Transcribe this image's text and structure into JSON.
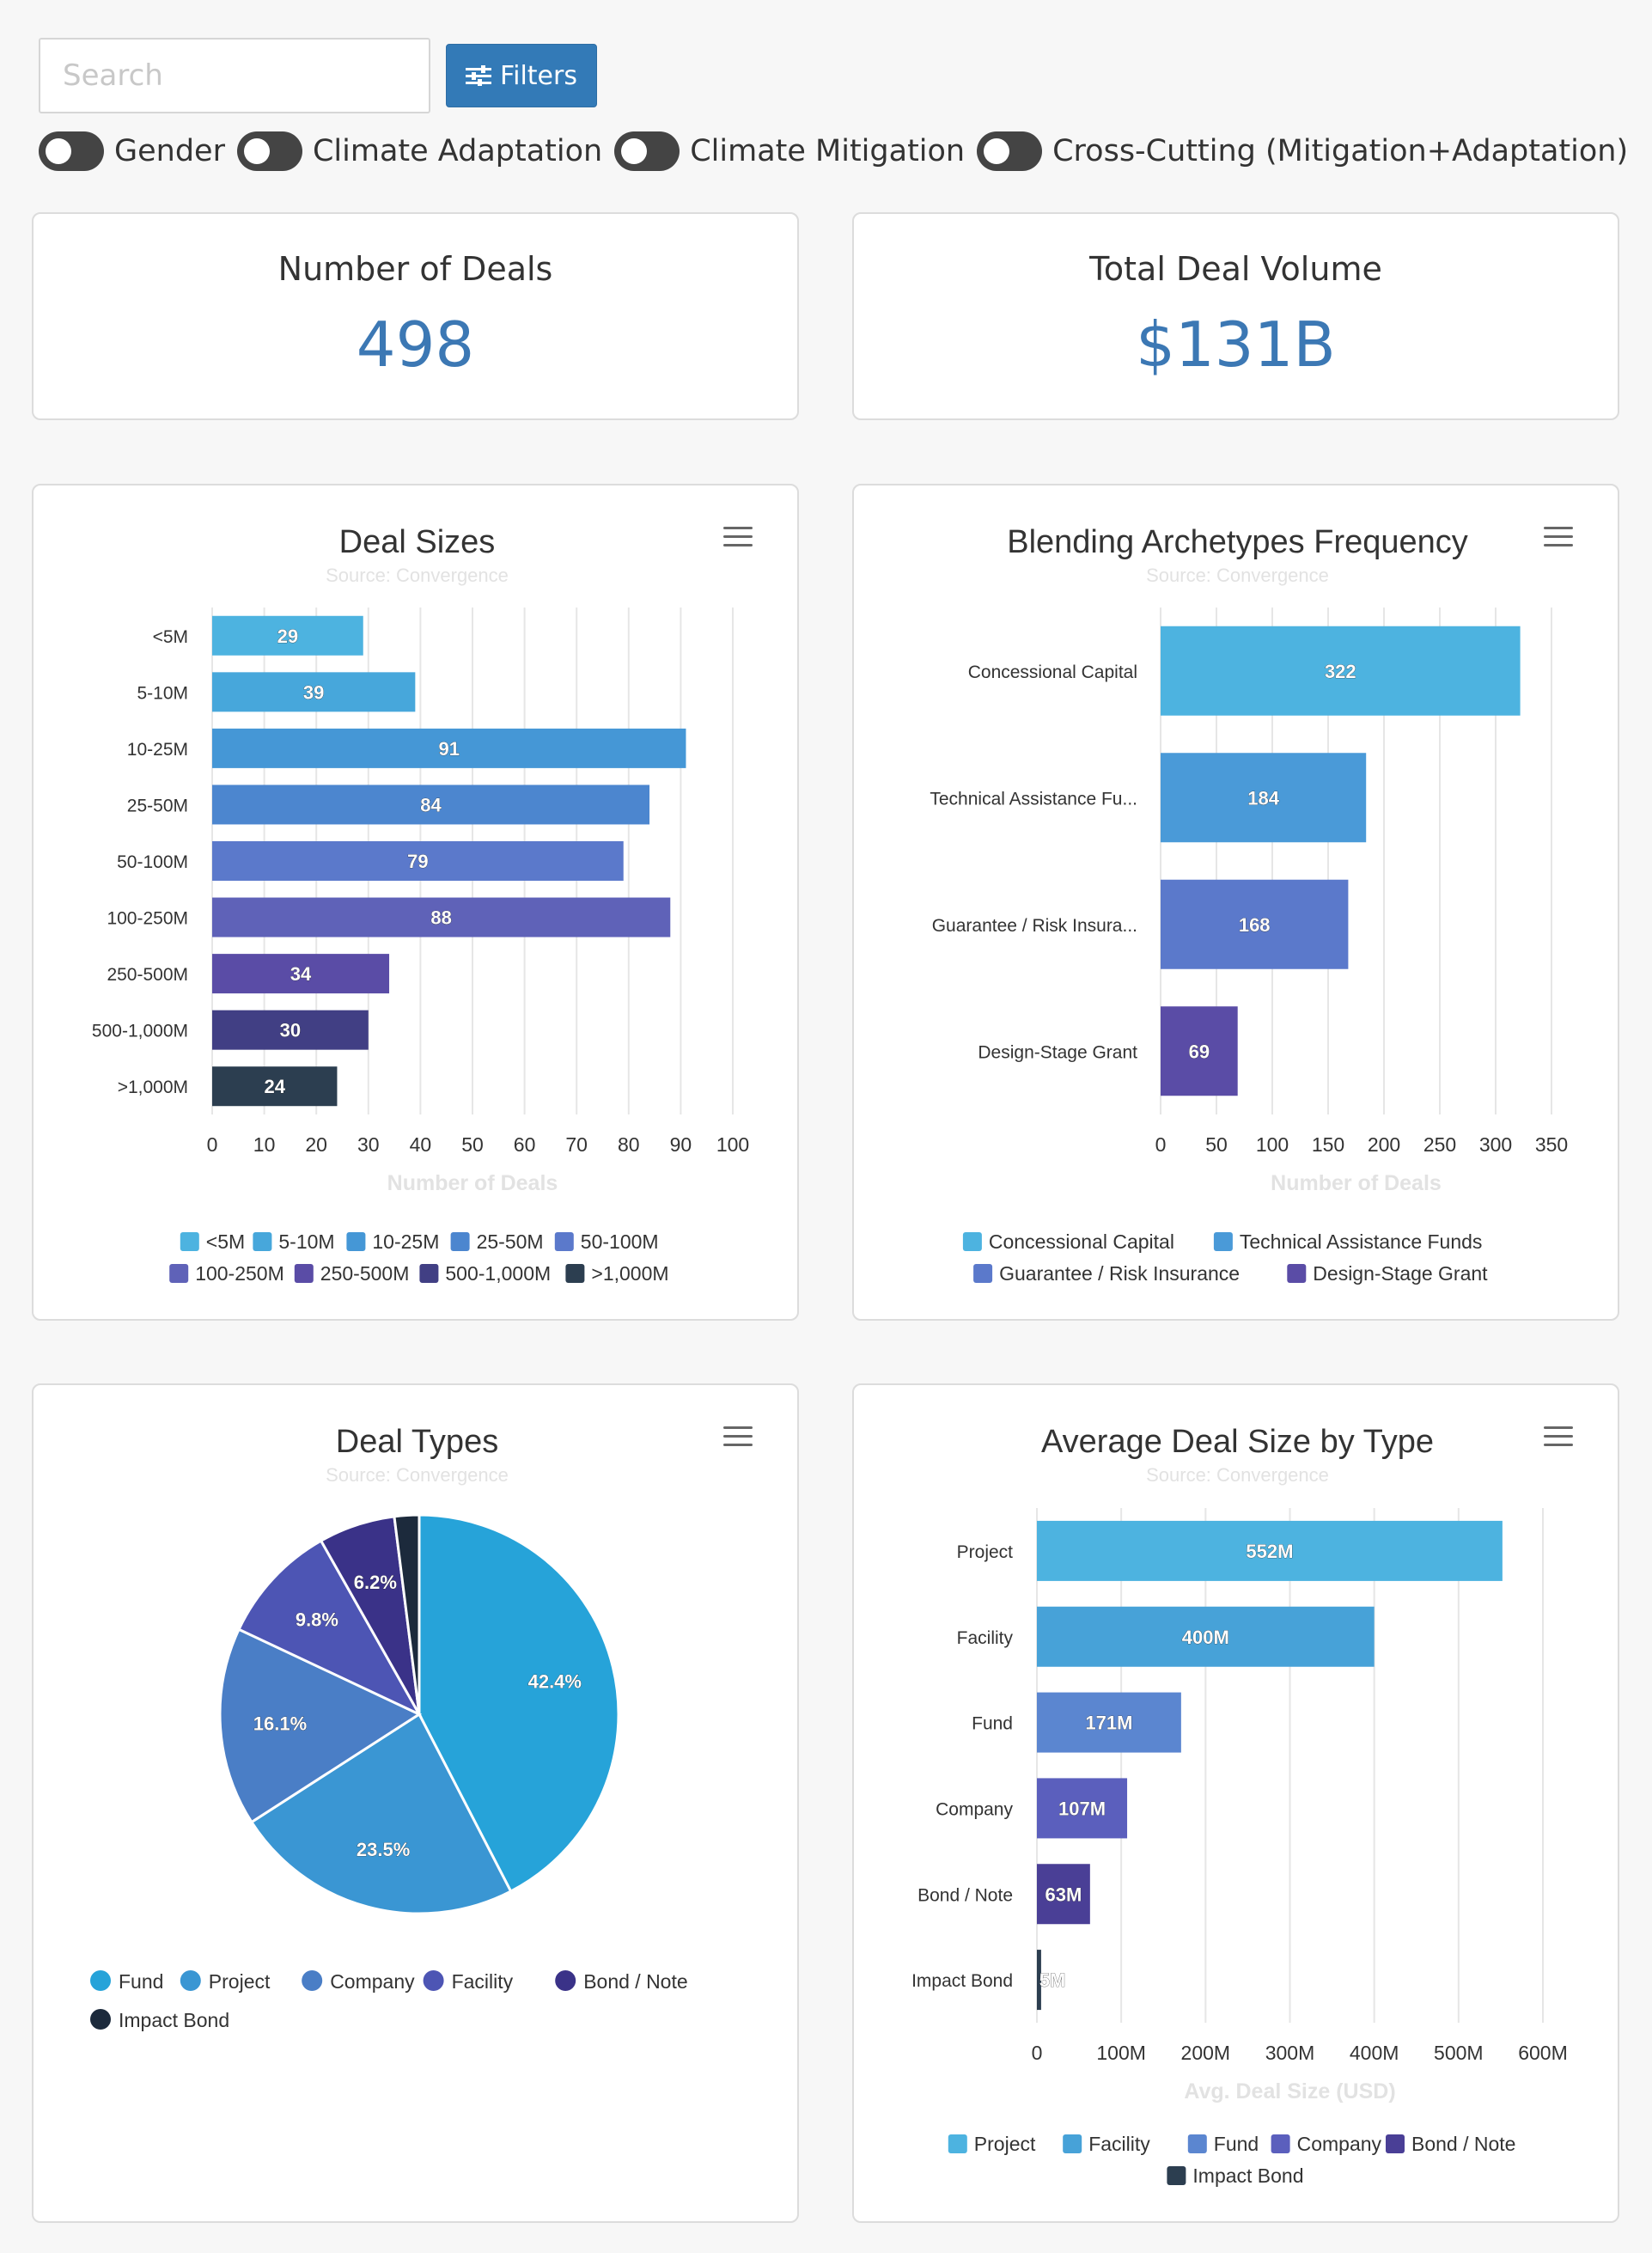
{
  "search": {
    "placeholder": "Search",
    "value": ""
  },
  "filters_button": {
    "label": "Filters"
  },
  "toggles": [
    {
      "label": "Gender"
    },
    {
      "label": "Climate Adaptation"
    },
    {
      "label": "Climate Mitigation"
    },
    {
      "label": "Cross-Cutting (Mitigation+Adaptation)"
    }
  ],
  "stats": {
    "deals": {
      "title": "Number of Deals",
      "value": "498"
    },
    "volume": {
      "title": "Total Deal Volume",
      "value": "$131B"
    }
  },
  "colors": {
    "accent": "#337ab7",
    "stat_value": "#3c78b4"
  },
  "chart_data": [
    {
      "id": "deal_sizes",
      "type": "bar",
      "orientation": "horizontal",
      "title": "Deal Sizes",
      "subtitle": "Source: Convergence",
      "categories": [
        "<5M",
        "5-10M",
        "10-25M",
        "25-50M",
        "50-100M",
        "100-250M",
        "250-500M",
        "500-1,000M",
        ">1,000M"
      ],
      "values": [
        29,
        39,
        91,
        84,
        79,
        88,
        34,
        30,
        24
      ],
      "data_labels": [
        "29",
        "39",
        "91",
        "84",
        "79",
        "88",
        "34",
        "30",
        "24"
      ],
      "colors": [
        "#4db3e0",
        "#47a7db",
        "#4597d6",
        "#4c86cf",
        "#5b79cb",
        "#5f62b8",
        "#5a4ca6",
        "#413f84",
        "#2c3e50"
      ],
      "xlabel": "Number of Deals",
      "xlim": [
        0,
        100
      ],
      "xticks": [
        "0",
        "10",
        "20",
        "30",
        "40",
        "50",
        "60",
        "70",
        "80",
        "90",
        "100"
      ],
      "grid": true,
      "legend_position": "bottom",
      "legend": [
        "<5M",
        "5-10M",
        "10-25M",
        "25-50M",
        "50-100M",
        "100-250M",
        "250-500M",
        "500-1,000M",
        ">1,000M"
      ]
    },
    {
      "id": "archetypes",
      "type": "bar",
      "orientation": "horizontal",
      "title": "Blending Archetypes Frequency",
      "subtitle": "Source: Convergence",
      "categories": [
        "Concessional Capital",
        "Technical Assistance Fu...",
        "Guarantee / Risk Insura...",
        "Design-Stage Grant"
      ],
      "values": [
        322,
        184,
        168,
        69
      ],
      "data_labels": [
        "322",
        "184",
        "168",
        "69"
      ],
      "colors": [
        "#4db3e0",
        "#4a9ad8",
        "#5b79cb",
        "#5a4ca6"
      ],
      "xlabel": "Number of Deals",
      "xlim": [
        0,
        350
      ],
      "xticks": [
        "0",
        "50",
        "100",
        "150",
        "200",
        "250",
        "300",
        "350"
      ],
      "grid": true,
      "legend_position": "bottom",
      "legend": [
        "Concessional Capital",
        "Technical Assistance Funds",
        "Guarantee / Risk Insurance",
        "Design-Stage Grant"
      ]
    },
    {
      "id": "deal_types",
      "type": "pie",
      "title": "Deal Types",
      "subtitle": "Source: Convergence",
      "categories": [
        "Fund",
        "Project",
        "Company",
        "Facility",
        "Bond / Note",
        "Impact Bond"
      ],
      "values": [
        42.4,
        23.5,
        16.1,
        9.8,
        6.2,
        2.0
      ],
      "data_labels": [
        "42.4%",
        "23.5%",
        "16.1%",
        "9.8%",
        "6.2%",
        ""
      ],
      "colors": [
        "#26a3d9",
        "#3a96d3",
        "#4a7ec6",
        "#4d55b4",
        "#3a3288",
        "#1c2a3c"
      ],
      "legend_position": "bottom",
      "legend": [
        "Fund",
        "Project",
        "Company",
        "Facility",
        "Bond / Note",
        "Impact Bond"
      ]
    },
    {
      "id": "avg_size",
      "type": "bar",
      "orientation": "horizontal",
      "title": "Average Deal Size by Type",
      "subtitle": "Source: Convergence",
      "categories": [
        "Project",
        "Facility",
        "Fund",
        "Company",
        "Bond / Note",
        "Impact Bond"
      ],
      "values": [
        552,
        400,
        171,
        107,
        63,
        5
      ],
      "data_labels": [
        "552M",
        "400M",
        "171M",
        "107M",
        "63M",
        "5M"
      ],
      "colors": [
        "#4db3e0",
        "#47a2d8",
        "#5b86d0",
        "#5b5fbd",
        "#4a3f96",
        "#2c3e50"
      ],
      "xlabel": "Avg. Deal Size (USD)",
      "xlim": [
        0,
        600
      ],
      "xticks": [
        "0",
        "100M",
        "200M",
        "300M",
        "400M",
        "500M",
        "600M"
      ],
      "grid": true,
      "legend_position": "bottom",
      "legend": [
        "Project",
        "Facility",
        "Fund",
        "Company",
        "Bond / Note",
        "Impact Bond"
      ]
    }
  ]
}
